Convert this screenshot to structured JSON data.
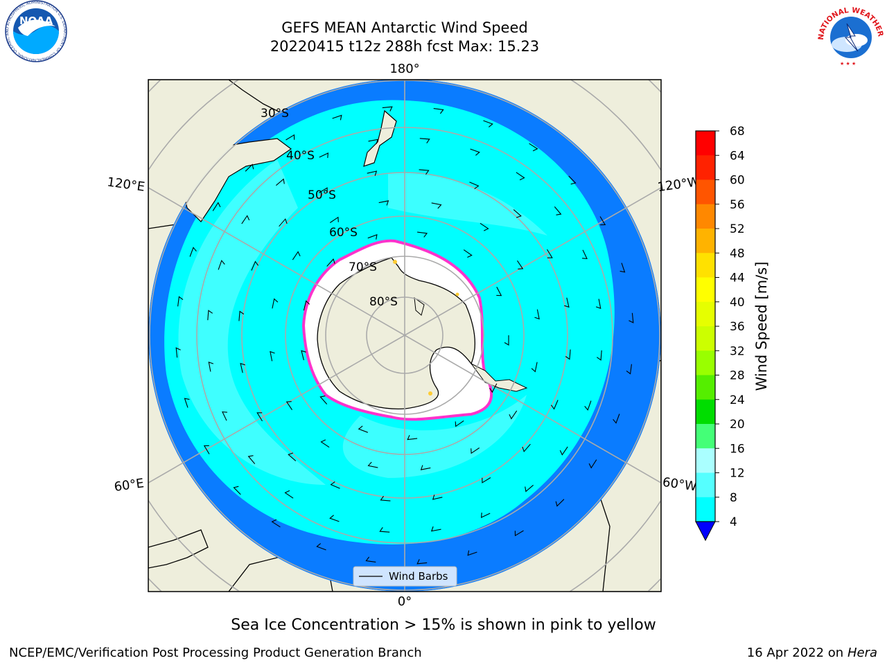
{
  "title": {
    "line1": "GEFS MEAN Antarctic Wind Speed",
    "line2": "20220415 t12z 288h fcst   Max: 15.23"
  },
  "logos": {
    "left": {
      "icon": "noaa-logo",
      "text": "NOAA",
      "ring_text": "NATIONAL OCEANIC AND ATMOSPHERIC ADMINISTRATION  U.S. DEPARTMENT OF COMMERCE"
    },
    "right": {
      "icon": "national-weather-service-logo",
      "ring_text": "NATIONAL WEATHER SERVICE"
    }
  },
  "map": {
    "projection": "south-polar-stereographic",
    "longitude_labels": [
      "180°",
      "120°E",
      "120°W",
      "60°E",
      "60°W",
      "0°"
    ],
    "latitude_labels": [
      "30°S",
      "40°S",
      "50°S",
      "60°S",
      "70°S",
      "80°S"
    ],
    "legend_label": "Wind Barbs",
    "colors": {
      "land": "#eeeedc",
      "ocean_4_8": "#0a7cff",
      "ocean_8_12": "#00ffff",
      "ocean_12_16": "#46ffff",
      "antarctic_ice": "#ffffff",
      "sea_ice_edge": "#ff33cc"
    }
  },
  "colorbar": {
    "label": "Wind Speed [m/s]",
    "ticks": [
      "68",
      "64",
      "60",
      "56",
      "52",
      "48",
      "44",
      "40",
      "36",
      "32",
      "28",
      "24",
      "20",
      "16",
      "12",
      "8",
      "4"
    ],
    "colors": [
      "#ff0000",
      "#ff2200",
      "#ff5500",
      "#ff8800",
      "#ffb300",
      "#ffe100",
      "#ffff00",
      "#e6ff00",
      "#ccff00",
      "#99ff00",
      "#55ee00",
      "#00dd00",
      "#44ff77",
      "#aaffff",
      "#55ffff",
      "#00ffff",
      "#0a7cff"
    ],
    "extend_color": "#0000ff"
  },
  "caption": "Sea Ice Concentration > 15% is shown in pink to yellow",
  "footer": {
    "left": "NCEP/EMC/Verification Post Processing Product Generation Branch",
    "right_prefix": "16 Apr 2022 on ",
    "right_italic": "Hera"
  }
}
